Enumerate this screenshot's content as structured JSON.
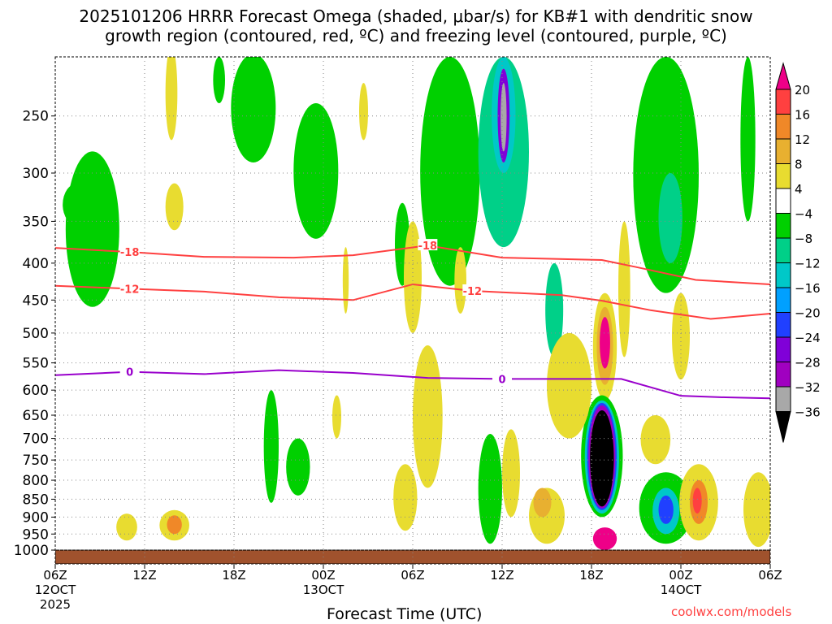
{
  "chart_data": {
    "type": "heatmap",
    "title_line1": "2025101206 HRRR Forecast Omega (shaded, μbar/s) for KB#1 with dendritic snow",
    "title_line2": "growth region (contoured, red, ºC) and freezing level (contoured, purple, ºC)",
    "xlabel": "Forecast Time (UTC)",
    "xlim_hours": [
      0,
      48
    ],
    "ylim_hPa": [
      207,
      1045
    ],
    "x_ticks": [
      {
        "h": 0,
        "l1": "06Z",
        "l2": "12OCT",
        "l3": "2025"
      },
      {
        "h": 6,
        "l1": "12Z"
      },
      {
        "h": 12,
        "l1": "18Z"
      },
      {
        "h": 18,
        "l1": "00Z",
        "l2": "13OCT"
      },
      {
        "h": 24,
        "l1": "06Z"
      },
      {
        "h": 30,
        "l1": "12Z"
      },
      {
        "h": 36,
        "l1": "18Z"
      },
      {
        "h": 42,
        "l1": "00Z",
        "l2": "14OCT"
      },
      {
        "h": 48,
        "l1": "06Z"
      }
    ],
    "y_ticks": [
      250,
      300,
      350,
      400,
      450,
      500,
      550,
      600,
      650,
      700,
      750,
      800,
      850,
      900,
      950,
      1000
    ],
    "colorbar": {
      "levels": [
        20,
        16,
        12,
        8,
        4,
        -4,
        -8,
        -12,
        -16,
        -20,
        -24,
        -28,
        -32,
        -36
      ],
      "colors": [
        "#ee0088",
        "#ff4040",
        "#f08828",
        "#e8b030",
        "#e8dc30",
        "#ffffff",
        "#00d000",
        "#00d088",
        "#00c8c8",
        "#00a0ff",
        "#2040ff",
        "#8000d8",
        "#a000c0",
        "#a8a8a8",
        "#000000"
      ]
    },
    "omega_cells": [
      {
        "t": 2.5,
        "p": 380,
        "dt": 1.8,
        "dp": [
          280,
          460
        ],
        "v": -6
      },
      {
        "t": 1.5,
        "p": 330,
        "dt": 1,
        "dp": [
          310,
          355
        ],
        "v": -6
      },
      {
        "t": 8,
        "p": 330,
        "dt": 0.6,
        "dp": [
          310,
          360
        ],
        "v": 5
      },
      {
        "t": 7.8,
        "p": 230,
        "dt": 0.4,
        "dp": [
          200,
          270
        ],
        "v": 5
      },
      {
        "t": 13.3,
        "p": 240,
        "dt": 1.5,
        "dp": [
          205,
          290
        ],
        "v": -6
      },
      {
        "t": 17.5,
        "p": 290,
        "dt": 1.5,
        "dp": [
          240,
          370
        ],
        "v": -6
      },
      {
        "t": 11,
        "p": 220,
        "dt": 0.4,
        "dp": [
          207,
          240
        ],
        "v": -6
      },
      {
        "t": 20.7,
        "p": 240,
        "dt": 0.3,
        "dp": [
          225,
          270
        ],
        "v": 5
      },
      {
        "t": 23.3,
        "p": 400,
        "dt": 0.5,
        "dp": [
          330,
          430
        ],
        "v": -6
      },
      {
        "t": 24,
        "p": 420,
        "dt": 0.6,
        "dp": [
          350,
          500
        ],
        "v": 5
      },
      {
        "t": 26.5,
        "p": 330,
        "dt": 2,
        "dp": [
          207,
          430
        ],
        "v": -6
      },
      {
        "t": 30.1,
        "p": 260,
        "dt": 1.7,
        "dp": [
          207,
          380
        ],
        "v": -10
      },
      {
        "t": 30.1,
        "p": 245,
        "dt": 0.8,
        "dp": [
          207,
          300
        ],
        "v": -16
      },
      {
        "t": 30.1,
        "p": 250,
        "dt": 0.4,
        "dp": [
          215,
          290
        ],
        "v": -26
      },
      {
        "t": 30.1,
        "p": 250,
        "dt": 0.2,
        "dp": [
          225,
          280
        ],
        "v": -34
      },
      {
        "t": 27.2,
        "p": 430,
        "dt": 0.4,
        "dp": [
          380,
          470
        ],
        "v": 5
      },
      {
        "t": 33.5,
        "p": 450,
        "dt": 0.6,
        "dp": [
          400,
          540
        ],
        "v": -12
      },
      {
        "t": 36.9,
        "p": 510,
        "dt": 0.8,
        "dp": [
          440,
          620
        ],
        "v": 6
      },
      {
        "t": 36.9,
        "p": 510,
        "dt": 0.55,
        "dp": [
          460,
          590
        ],
        "v": 10
      },
      {
        "t": 36.9,
        "p": 510,
        "dt": 0.35,
        "dp": [
          475,
          560
        ],
        "v": 22
      },
      {
        "t": 38.2,
        "p": 450,
        "dt": 0.4,
        "dp": [
          350,
          540
        ],
        "v": 5
      },
      {
        "t": 41,
        "p": 330,
        "dt": 2.2,
        "dp": [
          207,
          440
        ],
        "v": -6
      },
      {
        "t": 41.3,
        "p": 350,
        "dt": 0.8,
        "dp": [
          300,
          400
        ],
        "v": -10
      },
      {
        "t": 42,
        "p": 490,
        "dt": 0.6,
        "dp": [
          440,
          580
        ],
        "v": 6
      },
      {
        "t": 46.5,
        "p": 280,
        "dt": 0.5,
        "dp": [
          207,
          350
        ],
        "v": -6
      },
      {
        "t": 36.7,
        "p": 740,
        "dt": 1.4,
        "dp": [
          610,
          900
        ],
        "v": -6
      },
      {
        "t": 36.7,
        "p": 740,
        "dt": 1.15,
        "dp": [
          620,
          890
        ],
        "v": -14
      },
      {
        "t": 36.7,
        "p": 740,
        "dt": 1.0,
        "dp": [
          625,
          880
        ],
        "v": -22
      },
      {
        "t": 36.7,
        "p": 740,
        "dt": 0.9,
        "dp": [
          630,
          875
        ],
        "v": -30
      },
      {
        "t": 36.7,
        "p": 745,
        "dt": 0.8,
        "dp": [
          640,
          870
        ],
        "v": -38
      },
      {
        "t": 36.9,
        "p": 965,
        "dt": 0.8,
        "dp": [
          930,
          1000
        ],
        "v": 22
      },
      {
        "t": 41,
        "p": 880,
        "dt": 1.8,
        "dp": [
          780,
          980
        ],
        "v": -6
      },
      {
        "t": 41,
        "p": 880,
        "dt": 0.9,
        "dp": [
          820,
          950
        ],
        "v": -14
      },
      {
        "t": 41,
        "p": 880,
        "dt": 0.5,
        "dp": [
          840,
          920
        ],
        "v": -24
      },
      {
        "t": 43.2,
        "p": 860,
        "dt": 1.3,
        "dp": [
          760,
          970
        ],
        "v": 6
      },
      {
        "t": 43.2,
        "p": 850,
        "dt": 0.6,
        "dp": [
          800,
          920
        ],
        "v": 14
      },
      {
        "t": 43.1,
        "p": 850,
        "dt": 0.3,
        "dp": [
          820,
          890
        ],
        "v": 18
      },
      {
        "t": 47.2,
        "p": 880,
        "dt": 1,
        "dp": [
          780,
          990
        ],
        "v": 6
      },
      {
        "t": 40.3,
        "p": 700,
        "dt": 1,
        "dp": [
          650,
          760
        ],
        "v": 6
      },
      {
        "t": 29.2,
        "p": 800,
        "dt": 0.8,
        "dp": [
          690,
          980
        ],
        "v": -8
      },
      {
        "t": 30.6,
        "p": 780,
        "dt": 0.6,
        "dp": [
          680,
          900
        ],
        "v": 5
      },
      {
        "t": 25,
        "p": 720,
        "dt": 1,
        "dp": [
          520,
          820
        ],
        "v": 5
      },
      {
        "t": 23.5,
        "p": 830,
        "dt": 0.8,
        "dp": [
          760,
          940
        ],
        "v": 5
      },
      {
        "t": 14.5,
        "p": 700,
        "dt": 0.5,
        "dp": [
          600,
          860
        ],
        "v": -6
      },
      {
        "t": 4.8,
        "p": 925,
        "dt": 0.7,
        "dp": [
          890,
          970
        ],
        "v": 5
      },
      {
        "t": 8,
        "p": 920,
        "dt": 1,
        "dp": [
          880,
          970
        ],
        "v": 5
      },
      {
        "t": 8,
        "p": 920,
        "dt": 0.5,
        "dp": [
          895,
          950
        ],
        "v": 12
      },
      {
        "t": 18.9,
        "p": 650,
        "dt": 0.3,
        "dp": [
          610,
          700
        ],
        "v": 5
      },
      {
        "t": 16.3,
        "p": 770,
        "dt": 0.8,
        "dp": [
          700,
          840
        ],
        "v": -6
      },
      {
        "t": 34.5,
        "p": 580,
        "dt": 1.5,
        "dp": [
          500,
          700
        ],
        "v": 5
      },
      {
        "t": 33,
        "p": 880,
        "dt": 1.2,
        "dp": [
          820,
          980
        ],
        "v": 5
      },
      {
        "t": 32.7,
        "p": 860,
        "dt": 0.6,
        "dp": [
          820,
          900
        ],
        "v": 10
      },
      {
        "t": 19.5,
        "p": 420,
        "dt": 0.2,
        "dp": [
          380,
          470
        ],
        "v": 5
      }
    ],
    "contours": [
      {
        "label": "-18",
        "color": "#ff4040",
        "t": [
          0,
          5,
          10,
          16,
          20,
          25,
          30,
          36.7,
          39,
          43,
          48
        ],
        "p": [
          381,
          386,
          392,
          393,
          390,
          378,
          393,
          396,
          405,
          422,
          428
        ]
      },
      {
        "label": "-12",
        "color": "#ff4040",
        "t": [
          0,
          5,
          10,
          15,
          20,
          24,
          28,
          34,
          36.7,
          40,
          44,
          48
        ],
        "p": [
          430,
          434,
          438,
          446,
          450,
          428,
          437,
          443,
          451,
          465,
          478,
          470
        ]
      },
      {
        "label": "0",
        "color": "#9900cc",
        "t": [
          0,
          5,
          10,
          15,
          20,
          25,
          30,
          35,
          38,
          42,
          45,
          48
        ],
        "p": [
          572,
          566,
          570,
          563,
          568,
          577,
          579,
          579,
          579,
          611,
          614,
          616
        ]
      }
    ],
    "ground_pressure_hPa": 1000
  },
  "credit": "coolwx.com/models"
}
